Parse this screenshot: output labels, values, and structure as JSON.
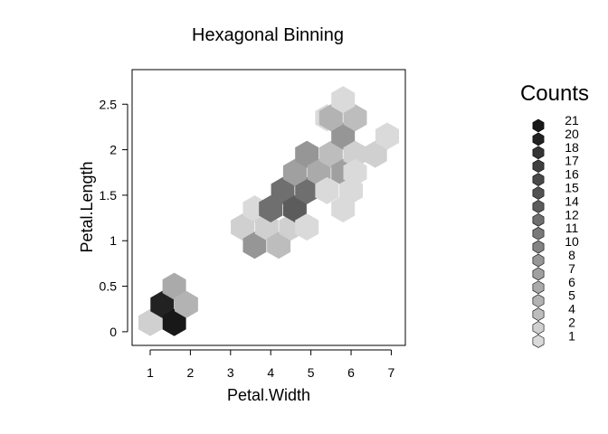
{
  "chart_data": {
    "type": "hexbin",
    "title": "Hexagonal Binning",
    "xlabel": "Petal.Width",
    "ylabel": "Petal.Length",
    "xlim": [
      0.55,
      7.35
    ],
    "ylim": [
      -0.15,
      2.88
    ],
    "x_ticks": [
      "1",
      "2",
      "3",
      "4",
      "5",
      "6",
      "7"
    ],
    "y_ticks": [
      "0",
      "0.5",
      "1",
      "1.5",
      "2",
      "2.5"
    ],
    "x_tick_values": [
      1,
      2,
      3,
      4,
      5,
      6,
      7
    ],
    "y_tick_values": [
      0,
      0.5,
      1,
      1.5,
      2,
      2.5
    ],
    "grid": false,
    "legend": {
      "title": "Counts",
      "position": "right",
      "levels": [
        "21",
        "20",
        "18",
        "17",
        "16",
        "15",
        "14",
        "12",
        "11",
        "10",
        "8",
        "7",
        "6",
        "5",
        "4",
        "2",
        "1"
      ]
    },
    "hexbins": [
      {
        "x": 1.0,
        "y": 0.1,
        "count": 2
      },
      {
        "x": 1.3,
        "y": 0.3,
        "count": 20
      },
      {
        "x": 1.6,
        "y": 0.1,
        "count": 21
      },
      {
        "x": 1.6,
        "y": 0.5,
        "count": 6
      },
      {
        "x": 1.9,
        "y": 0.3,
        "count": 5
      },
      {
        "x": 3.3,
        "y": 1.15,
        "count": 2
      },
      {
        "x": 3.6,
        "y": 1.35,
        "count": 1
      },
      {
        "x": 3.6,
        "y": 0.95,
        "count": 8
      },
      {
        "x": 3.9,
        "y": 1.15,
        "count": 2
      },
      {
        "x": 4.2,
        "y": 0.95,
        "count": 4
      },
      {
        "x": 4.0,
        "y": 1.35,
        "count": 12
      },
      {
        "x": 4.3,
        "y": 1.55,
        "count": 12
      },
      {
        "x": 4.5,
        "y": 1.15,
        "count": 2
      },
      {
        "x": 4.6,
        "y": 1.35,
        "count": 14
      },
      {
        "x": 4.9,
        "y": 1.55,
        "count": 12
      },
      {
        "x": 4.9,
        "y": 1.15,
        "count": 1
      },
      {
        "x": 4.6,
        "y": 1.75,
        "count": 7
      },
      {
        "x": 4.9,
        "y": 1.95,
        "count": 8
      },
      {
        "x": 5.2,
        "y": 1.75,
        "count": 6
      },
      {
        "x": 5.4,
        "y": 1.55,
        "count": 1
      },
      {
        "x": 5.5,
        "y": 1.95,
        "count": 4
      },
      {
        "x": 5.4,
        "y": 2.35,
        "count": 1
      },
      {
        "x": 5.8,
        "y": 1.75,
        "count": 7
      },
      {
        "x": 5.8,
        "y": 2.15,
        "count": 8
      },
      {
        "x": 5.8,
        "y": 1.35,
        "count": 1
      },
      {
        "x": 6.0,
        "y": 1.55,
        "count": 1
      },
      {
        "x": 6.1,
        "y": 1.95,
        "count": 2
      },
      {
        "x": 6.1,
        "y": 1.75,
        "count": 1
      },
      {
        "x": 5.5,
        "y": 2.35,
        "count": 5
      },
      {
        "x": 6.1,
        "y": 2.35,
        "count": 4
      },
      {
        "x": 5.8,
        "y": 2.55,
        "count": 1
      },
      {
        "x": 6.6,
        "y": 1.95,
        "count": 2
      },
      {
        "x": 6.9,
        "y": 2.15,
        "count": 1
      }
    ]
  }
}
